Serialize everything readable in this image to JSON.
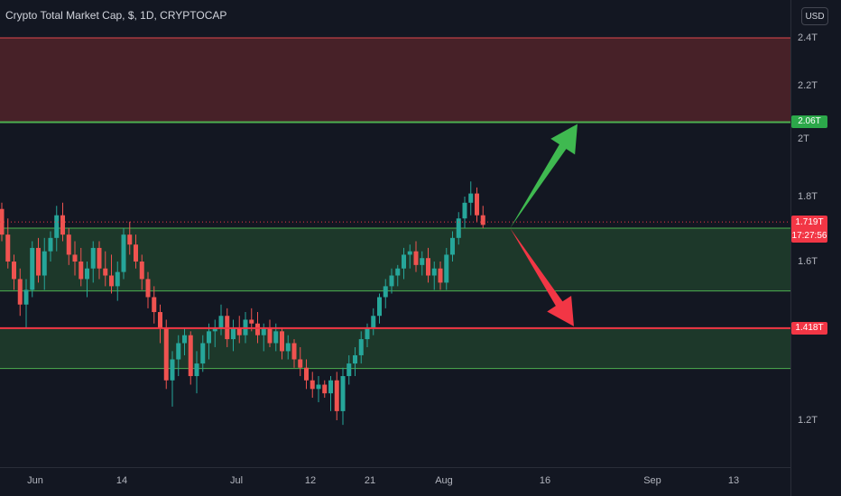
{
  "header": {
    "title": "Crypto Total Market Cap, $, 1D, CRYPTOCAP",
    "currency": "USD"
  },
  "colors": {
    "background": "#131722",
    "up": "#26a69a",
    "down": "#ef5350",
    "resistance_zone": "#4a2229",
    "support_zone": "#1e3a2b",
    "green_line": "#4caf50",
    "red_line": "#f23645",
    "arrow_up": "#3fb950",
    "arrow_down": "#f23645"
  },
  "price_labels": {
    "level_top": "2.06T",
    "current_price": "1.719T",
    "countdown": "17:27:56",
    "level_bottom": "1.418T"
  },
  "chart_data": {
    "type": "candlestick",
    "title": "Crypto Total Market Cap, $, 1D, CRYPTOCAP",
    "y_axis": {
      "unit": "T",
      "ylim": [
        1.1,
        2.45
      ],
      "ticks": [
        "2.4T",
        "2.2T",
        "2T",
        "1.8T",
        "1.6T",
        "1.2T"
      ],
      "tick_values": [
        2.4,
        2.2,
        2.0,
        1.8,
        1.6,
        1.2
      ],
      "scale": "log"
    },
    "x_axis": {
      "ticks": [
        "Jun",
        "14",
        "Jul",
        "12",
        "21",
        "Aug",
        "16",
        "Sep",
        "13"
      ]
    },
    "zones": [
      {
        "kind": "resistance",
        "from": 2.06,
        "to": 2.4
      },
      {
        "kind": "support",
        "from": 1.517,
        "to": 1.7
      },
      {
        "kind": "support",
        "from": 1.318,
        "to": 1.418
      }
    ],
    "levels": [
      {
        "value": 2.06,
        "color": "#4caf50"
      },
      {
        "value": 1.418,
        "color": "#f23645"
      }
    ],
    "current_price": 1.719,
    "projection": {
      "start": {
        "index": 83,
        "value": 1.7
      },
      "up_target": 2.06,
      "down_target": 1.418
    },
    "candles": [
      [
        1.76,
        1.78,
        1.66,
        1.68
      ],
      [
        1.68,
        1.73,
        1.58,
        1.6
      ],
      [
        1.6,
        1.62,
        1.52,
        1.55
      ],
      [
        1.55,
        1.58,
        1.45,
        1.48
      ],
      [
        1.48,
        1.55,
        1.42,
        1.52
      ],
      [
        1.52,
        1.66,
        1.5,
        1.64
      ],
      [
        1.64,
        1.67,
        1.54,
        1.56
      ],
      [
        1.56,
        1.67,
        1.52,
        1.63
      ],
      [
        1.63,
        1.69,
        1.6,
        1.67
      ],
      [
        1.67,
        1.77,
        1.63,
        1.74
      ],
      [
        1.74,
        1.78,
        1.66,
        1.68
      ],
      [
        1.68,
        1.7,
        1.59,
        1.62
      ],
      [
        1.62,
        1.66,
        1.56,
        1.6
      ],
      [
        1.6,
        1.64,
        1.53,
        1.55
      ],
      [
        1.55,
        1.6,
        1.5,
        1.58
      ],
      [
        1.58,
        1.66,
        1.54,
        1.64
      ],
      [
        1.64,
        1.66,
        1.55,
        1.58
      ],
      [
        1.58,
        1.63,
        1.53,
        1.56
      ],
      [
        1.56,
        1.62,
        1.51,
        1.53
      ],
      [
        1.53,
        1.6,
        1.49,
        1.57
      ],
      [
        1.57,
        1.7,
        1.55,
        1.68
      ],
      [
        1.68,
        1.72,
        1.62,
        1.65
      ],
      [
        1.65,
        1.68,
        1.58,
        1.6
      ],
      [
        1.6,
        1.62,
        1.52,
        1.55
      ],
      [
        1.55,
        1.57,
        1.47,
        1.5
      ],
      [
        1.5,
        1.53,
        1.43,
        1.46
      ],
      [
        1.46,
        1.48,
        1.38,
        1.42
      ],
      [
        1.42,
        1.44,
        1.27,
        1.29
      ],
      [
        1.29,
        1.36,
        1.23,
        1.34
      ],
      [
        1.34,
        1.4,
        1.3,
        1.38
      ],
      [
        1.38,
        1.42,
        1.35,
        1.4
      ],
      [
        1.4,
        1.41,
        1.28,
        1.3
      ],
      [
        1.3,
        1.36,
        1.26,
        1.33
      ],
      [
        1.33,
        1.4,
        1.31,
        1.38
      ],
      [
        1.38,
        1.43,
        1.34,
        1.41
      ],
      [
        1.41,
        1.44,
        1.37,
        1.42
      ],
      [
        1.42,
        1.48,
        1.4,
        1.45
      ],
      [
        1.45,
        1.47,
        1.37,
        1.39
      ],
      [
        1.39,
        1.44,
        1.36,
        1.42
      ],
      [
        1.42,
        1.45,
        1.38,
        1.4
      ],
      [
        1.4,
        1.46,
        1.38,
        1.44
      ],
      [
        1.44,
        1.47,
        1.41,
        1.43
      ],
      [
        1.43,
        1.46,
        1.38,
        1.4
      ],
      [
        1.4,
        1.43,
        1.36,
        1.42
      ],
      [
        1.42,
        1.44,
        1.37,
        1.38
      ],
      [
        1.38,
        1.43,
        1.36,
        1.41
      ],
      [
        1.41,
        1.42,
        1.34,
        1.36
      ],
      [
        1.36,
        1.4,
        1.34,
        1.38
      ],
      [
        1.38,
        1.39,
        1.32,
        1.34
      ],
      [
        1.34,
        1.37,
        1.3,
        1.32
      ],
      [
        1.32,
        1.34,
        1.27,
        1.29
      ],
      [
        1.29,
        1.31,
        1.25,
        1.27
      ],
      [
        1.27,
        1.3,
        1.24,
        1.28
      ],
      [
        1.28,
        1.29,
        1.25,
        1.26
      ],
      [
        1.26,
        1.3,
        1.22,
        1.29
      ],
      [
        1.29,
        1.31,
        1.2,
        1.22
      ],
      [
        1.22,
        1.32,
        1.19,
        1.3
      ],
      [
        1.3,
        1.35,
        1.28,
        1.33
      ],
      [
        1.33,
        1.37,
        1.3,
        1.35
      ],
      [
        1.35,
        1.41,
        1.33,
        1.39
      ],
      [
        1.39,
        1.43,
        1.37,
        1.42
      ],
      [
        1.42,
        1.47,
        1.4,
        1.45
      ],
      [
        1.45,
        1.51,
        1.43,
        1.5
      ],
      [
        1.5,
        1.55,
        1.47,
        1.53
      ],
      [
        1.53,
        1.58,
        1.51,
        1.56
      ],
      [
        1.56,
        1.59,
        1.53,
        1.58
      ],
      [
        1.58,
        1.64,
        1.55,
        1.62
      ],
      [
        1.62,
        1.65,
        1.58,
        1.63
      ],
      [
        1.63,
        1.66,
        1.57,
        1.59
      ],
      [
        1.59,
        1.63,
        1.56,
        1.61
      ],
      [
        1.61,
        1.64,
        1.54,
        1.56
      ],
      [
        1.56,
        1.6,
        1.52,
        1.58
      ],
      [
        1.58,
        1.6,
        1.52,
        1.54
      ],
      [
        1.54,
        1.64,
        1.52,
        1.62
      ],
      [
        1.62,
        1.69,
        1.6,
        1.67
      ],
      [
        1.67,
        1.75,
        1.65,
        1.73
      ],
      [
        1.73,
        1.8,
        1.7,
        1.78
      ],
      [
        1.78,
        1.85,
        1.74,
        1.81
      ],
      [
        1.81,
        1.83,
        1.72,
        1.74
      ],
      [
        1.74,
        1.77,
        1.7,
        1.71
      ]
    ]
  }
}
